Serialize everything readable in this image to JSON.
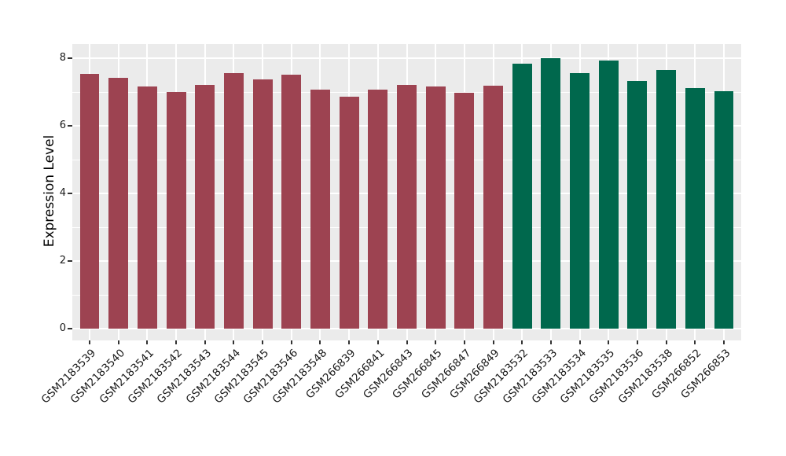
{
  "style": {
    "figure_background": "#ffffff",
    "panel_background": "#ebebeb",
    "grid_color": "#ffffff",
    "tick_mark_color": "#333333",
    "text_color": "#1a1a1a",
    "bar_color_group1": "#9d4351",
    "bar_color_group2": "#00684d"
  },
  "chart_data": {
    "type": "bar",
    "title": "",
    "xlabel": "",
    "ylabel": "Expression Level",
    "legend": "none",
    "grid": "major-and-minor-white-on-gray",
    "categories": [
      "GSM2183539",
      "GSM2183540",
      "GSM2183541",
      "GSM2183542",
      "GSM2183543",
      "GSM2183544",
      "GSM2183545",
      "GSM2183546",
      "GSM2183548",
      "GSM266839",
      "GSM266841",
      "GSM266843",
      "GSM266845",
      "GSM266847",
      "GSM266849",
      "GSM2183532",
      "GSM2183533",
      "GSM2183534",
      "GSM2183535",
      "GSM2183536",
      "GSM2183538",
      "GSM266852",
      "GSM266853"
    ],
    "values": [
      7.53,
      7.41,
      7.16,
      7.01,
      7.2,
      7.57,
      7.37,
      7.51,
      7.08,
      6.87,
      7.06,
      7.22,
      7.16,
      6.97,
      7.18,
      7.84,
      8.01,
      7.57,
      7.92,
      7.33,
      7.65,
      7.12,
      7.02
    ],
    "bar_colors": [
      "#9d4351",
      "#9d4351",
      "#9d4351",
      "#9d4351",
      "#9d4351",
      "#9d4351",
      "#9d4351",
      "#9d4351",
      "#9d4351",
      "#9d4351",
      "#9d4351",
      "#9d4351",
      "#9d4351",
      "#9d4351",
      "#9d4351",
      "#00684d",
      "#00684d",
      "#00684d",
      "#00684d",
      "#00684d",
      "#00684d",
      "#00684d",
      "#00684d"
    ],
    "yticks": [
      0,
      2,
      4,
      6,
      8
    ],
    "yticks_minor": [
      1,
      3,
      5,
      7
    ],
    "ylim": [
      -0.35,
      8.42
    ],
    "x_tick_rotation_deg": 45
  }
}
